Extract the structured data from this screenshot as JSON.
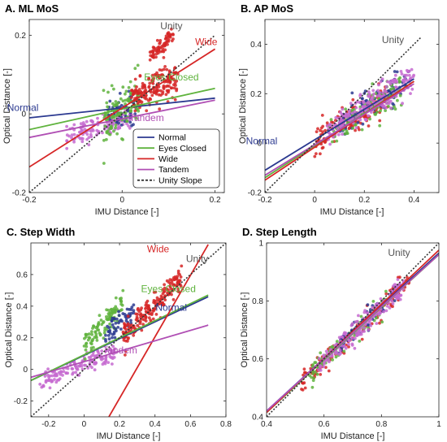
{
  "figure": {
    "legend": {
      "entries": [
        {
          "label": "Normal",
          "color": "#2b3990",
          "dash": false
        },
        {
          "label": "Eyes Closed",
          "color": "#5fb33d",
          "dash": false
        },
        {
          "label": "Wide",
          "color": "#d62626",
          "dash": false
        },
        {
          "label": "Tandem",
          "color": "#b04fb4",
          "dash": false
        },
        {
          "label": "Unity Slope",
          "color": "#333333",
          "dash": true
        }
      ]
    }
  },
  "chart_data": [
    {
      "id": "A",
      "type": "scatter",
      "title": "A. ML MoS",
      "xlabel": "IMU Distance [-]",
      "ylabel": "Optical Distance [-]",
      "xlim": [
        -0.2,
        0.22
      ],
      "ylim": [
        -0.2,
        0.24
      ],
      "xticks": [
        -0.2,
        0,
        0.2
      ],
      "xticklabels": [
        "-0.2",
        "0",
        "0.2"
      ],
      "yticks": [
        -0.2,
        0,
        0.2
      ],
      "yticklabels": [
        "-0.2",
        "0",
        "0.2"
      ],
      "legend_placement": "bottom-right",
      "fit_lines": [
        {
          "group": "Normal",
          "color": "#2b3990",
          "x": [
            -0.2,
            0.2
          ],
          "y": [
            -0.01,
            0.04
          ]
        },
        {
          "group": "Eyes Closed",
          "color": "#5fb33d",
          "x": [
            -0.2,
            0.2
          ],
          "y": [
            -0.04,
            0.065
          ]
        },
        {
          "group": "Wide",
          "color": "#d62626",
          "x": [
            -0.2,
            0.2
          ],
          "y": [
            -0.135,
            0.165
          ]
        },
        {
          "group": "Tandem",
          "color": "#b04fb4",
          "x": [
            -0.2,
            0.2
          ],
          "y": [
            -0.06,
            0.035
          ]
        },
        {
          "group": "Unity",
          "color": "#333333",
          "dash": true,
          "x": [
            -0.2,
            0.2
          ],
          "y": [
            -0.2,
            0.2
          ]
        }
      ],
      "clouds": [
        {
          "group": "Tandem",
          "color": "#c56ad0",
          "x0": -0.12,
          "x1": 0.02,
          "slope": 0.45,
          "intercept": -0.01,
          "spread": 0.015,
          "n": 130
        },
        {
          "group": "Normal",
          "color": "#2b3990",
          "x0": -0.03,
          "x1": 0.03,
          "slope": 0.3,
          "intercept": 0.01,
          "spread": 0.02,
          "n": 60
        },
        {
          "group": "Eyes Closed",
          "color": "#5fb33d",
          "x0": -0.04,
          "x1": 0.04,
          "slope": 0.8,
          "intercept": 0.01,
          "spread": 0.03,
          "n": 110
        },
        {
          "group": "Wide",
          "color": "#d62626",
          "x0": 0.02,
          "x1": 0.12,
          "slope": 0.5,
          "intercept": 0.03,
          "spread": 0.02,
          "n": 170
        },
        {
          "group": "Wide",
          "color": "#d62626",
          "x0": 0.06,
          "x1": 0.11,
          "slope": 1.2,
          "intercept": 0.07,
          "spread": 0.012,
          "n": 70
        }
      ],
      "annotations": [
        {
          "text": "Unity",
          "color": "#555555",
          "x": 0.13,
          "y": 0.215
        },
        {
          "text": "Wide",
          "color": "#d62626",
          "x": 0.205,
          "y": 0.175
        },
        {
          "text": "Eyes Closed",
          "color": "#5fb33d",
          "x": 0.165,
          "y": 0.085
        },
        {
          "text": "Normal",
          "color": "#2b3990",
          "x": -0.18,
          "y": 0.008
        },
        {
          "text": "Tandem",
          "color": "#b04fb4",
          "x": 0.09,
          "y": -0.018
        }
      ]
    },
    {
      "id": "B",
      "type": "scatter",
      "title": "B. AP MoS",
      "xlabel": "IMU Distance [-]",
      "ylabel": "Optical Distance [-]",
      "xlim": [
        -0.2,
        0.5
      ],
      "ylim": [
        -0.2,
        0.5
      ],
      "xticks": [
        -0.2,
        0,
        0.2,
        0.4
      ],
      "xticklabels": [
        "-0.2",
        "0",
        "0.2",
        "0.4"
      ],
      "yticks": [
        -0.2,
        0,
        0.2,
        0.4
      ],
      "yticklabels": [
        "-0.2",
        "0",
        "0.2",
        "0.4"
      ],
      "fit_lines": [
        {
          "group": "Normal",
          "color": "#2b3990",
          "x": [
            -0.2,
            0.4
          ],
          "y": [
            -0.11,
            0.26
          ]
        },
        {
          "group": "Eyes Closed",
          "color": "#5fb33d",
          "x": [
            -0.2,
            0.4
          ],
          "y": [
            -0.14,
            0.25
          ]
        },
        {
          "group": "Wide",
          "color": "#d62626",
          "x": [
            -0.2,
            0.4
          ],
          "y": [
            -0.15,
            0.25
          ]
        },
        {
          "group": "Tandem",
          "color": "#b04fb4",
          "x": [
            -0.2,
            0.4
          ],
          "y": [
            -0.13,
            0.24
          ]
        },
        {
          "group": "Unity",
          "color": "#333333",
          "dash": true,
          "x": [
            -0.2,
            0.43
          ],
          "y": [
            -0.2,
            0.43
          ]
        }
      ],
      "clouds": [
        {
          "group": "Wide",
          "color": "#d62626",
          "x0": 0.0,
          "x1": 0.3,
          "slope": 0.65,
          "intercept": 0.0,
          "spread": 0.03,
          "n": 150
        },
        {
          "group": "Normal",
          "color": "#2b3990",
          "x0": 0.1,
          "x1": 0.38,
          "slope": 0.65,
          "intercept": 0.01,
          "spread": 0.03,
          "n": 100
        },
        {
          "group": "Eyes Closed",
          "color": "#5fb33d",
          "x0": 0.05,
          "x1": 0.35,
          "slope": 0.65,
          "intercept": 0.0,
          "spread": 0.035,
          "n": 100
        },
        {
          "group": "Tandem",
          "color": "#c56ad0",
          "x0": 0.05,
          "x1": 0.4,
          "slope": 0.65,
          "intercept": 0.01,
          "spread": 0.03,
          "n": 200
        }
      ],
      "annotations": [
        {
          "text": "Unity",
          "color": "#555555",
          "x": 0.36,
          "y": 0.405
        },
        {
          "text": "Normal",
          "color": "#2b3990",
          "x": -0.15,
          "y": -0.005
        }
      ]
    },
    {
      "id": "C",
      "type": "scatter",
      "title": "C. Step Width",
      "xlabel": "IMU Distance [-]",
      "ylabel": "Optical Distance [-]",
      "xlim": [
        -0.3,
        0.8
      ],
      "ylim": [
        -0.3,
        0.8
      ],
      "xticks": [
        -0.2,
        0,
        0.2,
        0.4,
        0.6,
        0.8
      ],
      "xticklabels": [
        "-0.2",
        "0",
        "0.2",
        "0.4",
        "0.6",
        "0.8"
      ],
      "yticks": [
        -0.2,
        0,
        0.2,
        0.4,
        0.6
      ],
      "yticklabels": [
        "-0.2",
        "0",
        "0.2",
        "0.4",
        "0.6"
      ],
      "fit_lines": [
        {
          "group": "Normal",
          "color": "#2b3990",
          "x": [
            -0.3,
            0.7
          ],
          "y": [
            -0.07,
            0.46
          ]
        },
        {
          "group": "Eyes Closed",
          "color": "#5fb33d",
          "x": [
            -0.3,
            0.7
          ],
          "y": [
            -0.07,
            0.47
          ]
        },
        {
          "group": "Wide",
          "color": "#d62626",
          "x": [
            0.14,
            0.7
          ],
          "y": [
            -0.3,
            0.79
          ]
        },
        {
          "group": "Tandem",
          "color": "#b04fb4",
          "x": [
            -0.3,
            0.7
          ],
          "y": [
            -0.05,
            0.28
          ]
        },
        {
          "group": "Unity",
          "color": "#333333",
          "dash": true,
          "x": [
            -0.3,
            0.8
          ],
          "y": [
            -0.3,
            0.8
          ]
        }
      ],
      "clouds": [
        {
          "group": "Tandem",
          "color": "#c56ad0",
          "x0": -0.25,
          "x1": 0.18,
          "slope": 0.45,
          "intercept": 0.03,
          "spread": 0.03,
          "n": 140
        },
        {
          "group": "Eyes Closed",
          "color": "#5fb33d",
          "x0": 0.0,
          "x1": 0.22,
          "slope": 1.2,
          "intercept": 0.15,
          "spread": 0.04,
          "n": 110
        },
        {
          "group": "Normal",
          "color": "#2b3990",
          "x0": 0.12,
          "x1": 0.28,
          "slope": 0.9,
          "intercept": 0.1,
          "spread": 0.04,
          "n": 60
        },
        {
          "group": "Wide",
          "color": "#d62626",
          "x0": 0.22,
          "x1": 0.55,
          "slope": 1.1,
          "intercept": -0.03,
          "spread": 0.04,
          "n": 200
        }
      ],
      "annotations": [
        {
          "text": "Wide",
          "color": "#d62626",
          "x": 0.48,
          "y": 0.74
        },
        {
          "text": "Unity",
          "color": "#555555",
          "x": 0.7,
          "y": 0.68
        },
        {
          "text": "Eyes Closed",
          "color": "#5fb33d",
          "x": 0.63,
          "y": 0.49
        },
        {
          "text": "Normal",
          "color": "#2b3990",
          "x": 0.58,
          "y": 0.37
        },
        {
          "text": "Tandem",
          "color": "#b04fb4",
          "x": 0.3,
          "y": 0.1
        }
      ]
    },
    {
      "id": "D",
      "type": "scatter",
      "title": "D. Step Length",
      "xlabel": "IMU Distance [-]",
      "ylabel": "Optical Distance [-]",
      "xlim": [
        0.4,
        1.0
      ],
      "ylim": [
        0.4,
        1.0
      ],
      "xticks": [
        0.4,
        0.6,
        0.8,
        1
      ],
      "xticklabels": [
        "0.4",
        "0.6",
        "0.8",
        "1"
      ],
      "yticks": [
        0.4,
        0.6,
        0.8,
        1
      ],
      "yticklabels": [
        "0.4",
        "0.6",
        "0.8",
        "1"
      ],
      "fit_lines": [
        {
          "group": "Normal",
          "color": "#2b3990",
          "x": [
            0.4,
            1.0
          ],
          "y": [
            0.42,
            0.965
          ]
        },
        {
          "group": "Eyes Closed",
          "color": "#5fb33d",
          "x": [
            0.4,
            1.0
          ],
          "y": [
            0.415,
            0.96
          ]
        },
        {
          "group": "Wide",
          "color": "#d62626",
          "x": [
            0.4,
            1.0
          ],
          "y": [
            0.415,
            0.975
          ]
        },
        {
          "group": "Tandem",
          "color": "#b04fb4",
          "x": [
            0.4,
            1.0
          ],
          "y": [
            0.42,
            0.96
          ]
        },
        {
          "group": "Unity",
          "color": "#333333",
          "dash": true,
          "x": [
            0.4,
            1.0
          ],
          "y": [
            0.4,
            1.0
          ]
        }
      ],
      "clouds": [
        {
          "group": "Wide",
          "color": "#d62626",
          "x0": 0.52,
          "x1": 0.9,
          "slope": 0.92,
          "intercept": 0.04,
          "spread": 0.02,
          "n": 120
        },
        {
          "group": "Eyes Closed",
          "color": "#5fb33d",
          "x0": 0.55,
          "x1": 0.82,
          "slope": 0.92,
          "intercept": 0.04,
          "spread": 0.022,
          "n": 90
        },
        {
          "group": "Normal",
          "color": "#2b3990",
          "x0": 0.65,
          "x1": 0.85,
          "slope": 0.92,
          "intercept": 0.045,
          "spread": 0.02,
          "n": 60
        },
        {
          "group": "Tandem",
          "color": "#c56ad0",
          "x0": 0.58,
          "x1": 0.88,
          "slope": 0.92,
          "intercept": 0.04,
          "spread": 0.018,
          "n": 220
        }
      ],
      "annotations": [
        {
          "text": "Unity",
          "color": "#555555",
          "x": 0.9,
          "y": 0.955
        }
      ]
    }
  ]
}
